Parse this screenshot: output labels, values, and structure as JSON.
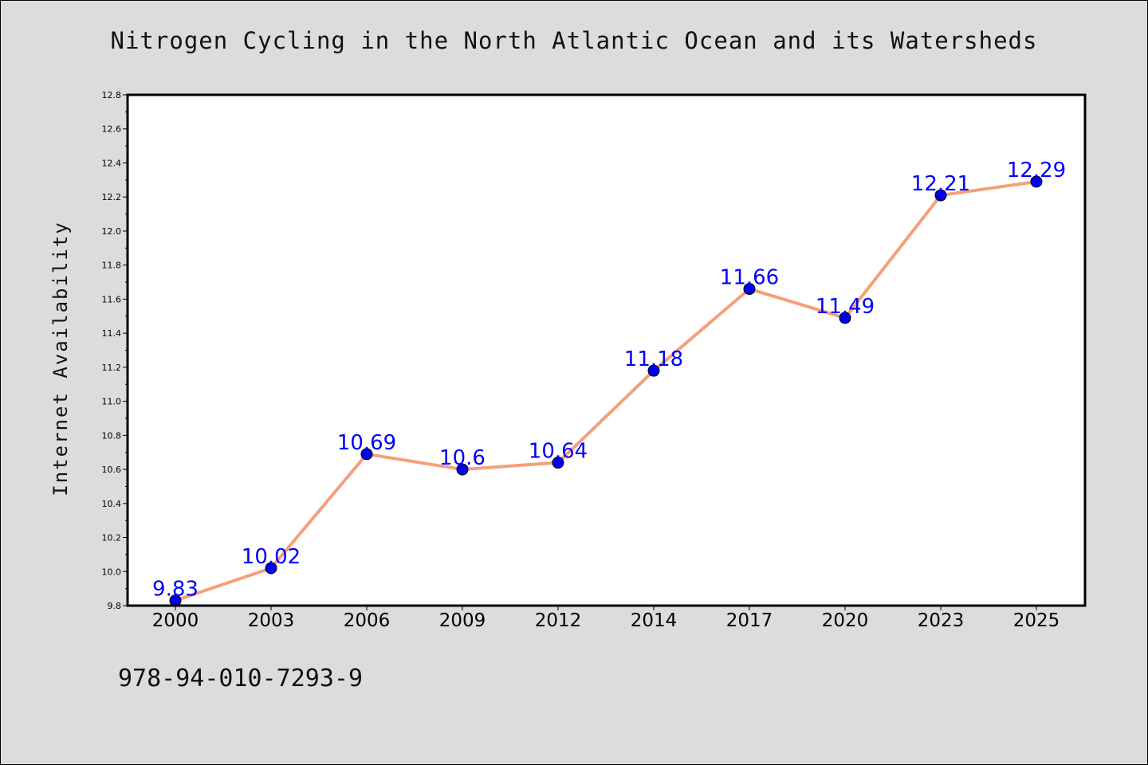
{
  "chart_data": {
    "type": "line",
    "title": "Nitrogen Cycling in the North Atlantic Ocean and its Watersheds",
    "xlabel": "",
    "ylabel": "Internet Availability",
    "categories": [
      "2000",
      "2003",
      "2006",
      "2009",
      "2012",
      "2014",
      "2017",
      "2020",
      "2023",
      "2025"
    ],
    "series": [
      {
        "values": [
          9.83,
          10.02,
          10.69,
          10.6,
          10.64,
          11.18,
          11.66,
          11.49,
          12.21,
          12.29
        ],
        "data_labels": [
          "9.83",
          "10.02",
          "10.69",
          "10.6",
          "10.64",
          "11.18",
          "11.66",
          "11.49",
          "12.21",
          "12.29"
        ]
      }
    ],
    "ylim": [
      9.8,
      12.8
    ],
    "yticks": [
      "9.8",
      "10.0",
      "10.2",
      "10.4",
      "10.6",
      "10.8",
      "11.0",
      "11.2",
      "11.4",
      "11.6",
      "11.8",
      "12.0",
      "12.2",
      "12.4",
      "12.6",
      "12.8"
    ],
    "grid": false,
    "legend": "none",
    "colors": {
      "line": "#f4a07a",
      "marker": "#0000ee",
      "data_label": "#0000ff",
      "background": "#dcdcdc",
      "plot_background": "#ffffff"
    }
  },
  "footer_text": "978-94-010-7293-9"
}
